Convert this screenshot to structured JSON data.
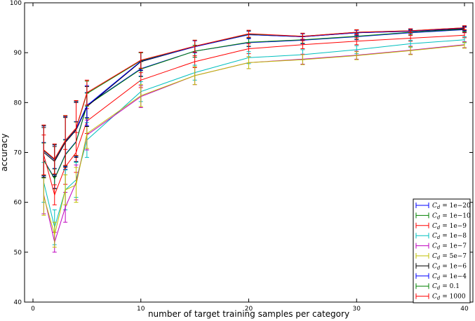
{
  "chart_data": {
    "type": "line",
    "xlabel": "number of target training samples per category",
    "ylabel": "accuracy",
    "xlim": [
      -1,
      41
    ],
    "ylim": [
      40,
      100
    ],
    "xticks": [
      0,
      10,
      20,
      30,
      40
    ],
    "yticks": [
      40,
      50,
      60,
      70,
      80,
      90,
      100
    ],
    "grid": false,
    "legend_position": "bottom-right",
    "x": [
      1,
      2,
      3,
      4,
      5,
      10,
      15,
      20,
      25,
      30,
      35,
      40
    ],
    "series": [
      {
        "name": "C_d = 1e-20",
        "color": "#0000ff",
        "values": [
          68.5,
          64.8,
          69.6,
          72.2,
          79.5,
          86.8,
          90.3,
          92.0,
          92.5,
          93.2,
          94.0,
          94.6
        ],
        "errors": [
          3.5,
          2.0,
          3.0,
          4.0,
          2.5,
          1.5,
          1.2,
          0.8,
          0.7,
          0.6,
          0.5,
          0.5
        ]
      },
      {
        "name": "C_d = 1e-10",
        "color": "#008000",
        "values": [
          68.4,
          64.7,
          69.5,
          72.1,
          79.4,
          86.7,
          90.3,
          92.1,
          92.6,
          93.3,
          94.1,
          94.7
        ],
        "errors": [
          3.5,
          2.0,
          3.0,
          4.0,
          2.5,
          1.5,
          1.2,
          0.8,
          0.7,
          0.6,
          0.5,
          0.5
        ]
      },
      {
        "name": "C_d = 1e-9",
        "color": "#ff0000",
        "values": [
          69.5,
          61.5,
          67.1,
          70.0,
          76.3,
          84.5,
          88.2,
          90.8,
          91.6,
          92.3,
          92.9,
          93.5
        ],
        "errors": [
          4.0,
          2.0,
          3.5,
          4.0,
          2.5,
          1.5,
          1.2,
          1.0,
          0.8,
          0.7,
          0.6,
          0.5
        ]
      },
      {
        "name": "C_d = 1e-8",
        "color": "#00bfbf",
        "values": [
          64.0,
          55.0,
          62.5,
          64.5,
          72.5,
          82.2,
          86.0,
          89.0,
          89.6,
          90.6,
          91.8,
          92.6
        ],
        "errors": [
          4.0,
          3.5,
          4.0,
          3.5,
          3.5,
          2.0,
          1.5,
          1.2,
          1.0,
          0.8,
          0.7,
          0.6
        ]
      },
      {
        "name": "C_d = 1e-7",
        "color": "#bf00bf",
        "values": [
          61.5,
          52.0,
          59.0,
          64.0,
          73.5,
          81.2,
          85.4,
          88.0,
          88.7,
          89.5,
          90.5,
          91.6
        ],
        "errors": [
          3.8,
          2.0,
          3.0,
          3.5,
          3.0,
          2.2,
          1.8,
          1.2,
          1.0,
          0.8,
          0.8,
          0.6
        ]
      },
      {
        "name": "C_d = 5e-7",
        "color": "#bfbf00",
        "values": [
          61.2,
          53.5,
          62.5,
          63.5,
          73.8,
          81.4,
          85.4,
          88.0,
          88.6,
          89.4,
          90.4,
          91.5
        ],
        "errors": [
          3.8,
          2.5,
          3.0,
          3.5,
          3.0,
          2.2,
          1.8,
          1.2,
          1.0,
          0.8,
          0.8,
          0.6
        ]
      },
      {
        "name": "C_d = 1e-6",
        "color": "#000000",
        "values": [
          70.0,
          68.2,
          72.0,
          74.5,
          79.2,
          88.2,
          91.2,
          93.6,
          93.2,
          94.0,
          94.3,
          94.8
        ],
        "errors": [
          5.0,
          3.0,
          5.0,
          5.5,
          4.0,
          1.8,
          1.2,
          0.7,
          0.6,
          0.5,
          0.4,
          0.4
        ]
      },
      {
        "name": "C_d = 1e-4",
        "color": "#0000ff",
        "values": [
          70.3,
          68.5,
          72.2,
          74.7,
          79.4,
          88.3,
          91.2,
          93.6,
          93.2,
          94.0,
          94.3,
          94.9
        ],
        "errors": [
          5.0,
          3.0,
          5.0,
          5.5,
          4.0,
          1.8,
          1.2,
          0.7,
          0.6,
          0.5,
          0.4,
          0.4
        ]
      },
      {
        "name": "C_d = 0.1",
        "color": "#008000",
        "values": [
          70.4,
          68.6,
          72.3,
          74.8,
          81.8,
          88.4,
          91.3,
          93.7,
          93.3,
          94.1,
          94.4,
          95.0
        ],
        "errors": [
          5.0,
          3.0,
          5.0,
          5.5,
          2.5,
          1.6,
          1.2,
          0.7,
          0.6,
          0.5,
          0.4,
          0.4
        ]
      },
      {
        "name": "C_d = 1000",
        "color": "#ff0000",
        "values": [
          70.5,
          68.7,
          72.4,
          74.9,
          82.0,
          88.5,
          91.3,
          93.8,
          93.3,
          94.1,
          94.4,
          95.0
        ],
        "errors": [
          5.0,
          3.0,
          5.0,
          5.5,
          2.5,
          1.6,
          1.2,
          0.7,
          0.6,
          0.5,
          0.4,
          0.4
        ]
      }
    ],
    "legend_entries": [
      {
        "var": "C",
        "sub": "d",
        "value": "1e−20",
        "color": "#0000ff"
      },
      {
        "var": "C",
        "sub": "d",
        "value": "1e−10",
        "color": "#008000"
      },
      {
        "var": "C",
        "sub": "d",
        "value": "1e−9",
        "color": "#ff0000"
      },
      {
        "var": "C",
        "sub": "d",
        "value": "1e−8",
        "color": "#00bfbf"
      },
      {
        "var": "C",
        "sub": "d",
        "value": "1e−7",
        "color": "#bf00bf"
      },
      {
        "var": "C",
        "sub": "d",
        "value": "5e−7",
        "color": "#bfbf00"
      },
      {
        "var": "C",
        "sub": "d",
        "value": "1e−6",
        "color": "#000000"
      },
      {
        "var": "C",
        "sub": "d",
        "value": "1e−4",
        "color": "#0000ff"
      },
      {
        "var": "C",
        "sub": "d",
        "value": "0.1",
        "color": "#008000"
      },
      {
        "var": "C",
        "sub": "d",
        "value": "1000",
        "color": "#ff0000"
      }
    ]
  }
}
